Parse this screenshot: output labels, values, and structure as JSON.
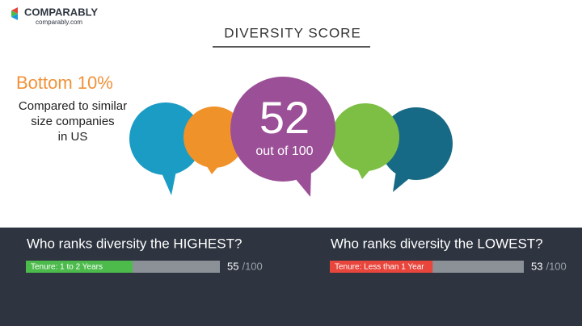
{
  "logo": {
    "name": "COMPARABLY",
    "url": "comparably.com"
  },
  "title": "DIVERSITY SCORE",
  "rank": {
    "headline": "Bottom 10%",
    "lines": [
      "Compared to similar",
      "size companies",
      "in US"
    ]
  },
  "score": {
    "value": 52,
    "caption": "out of 100"
  },
  "rankings": [
    {
      "question": "Who ranks diversity the HIGHEST?",
      "group": "Tenure: 1 to 2 Years",
      "value": 55,
      "max": 100,
      "max_label": "/100",
      "color": "#4cbb4c"
    },
    {
      "question": "Who ranks diversity the LOWEST?",
      "group": "Tenure: Less than 1 Year",
      "value": 53,
      "max": 100,
      "max_label": "/100",
      "color": "#e8453c"
    }
  ]
}
